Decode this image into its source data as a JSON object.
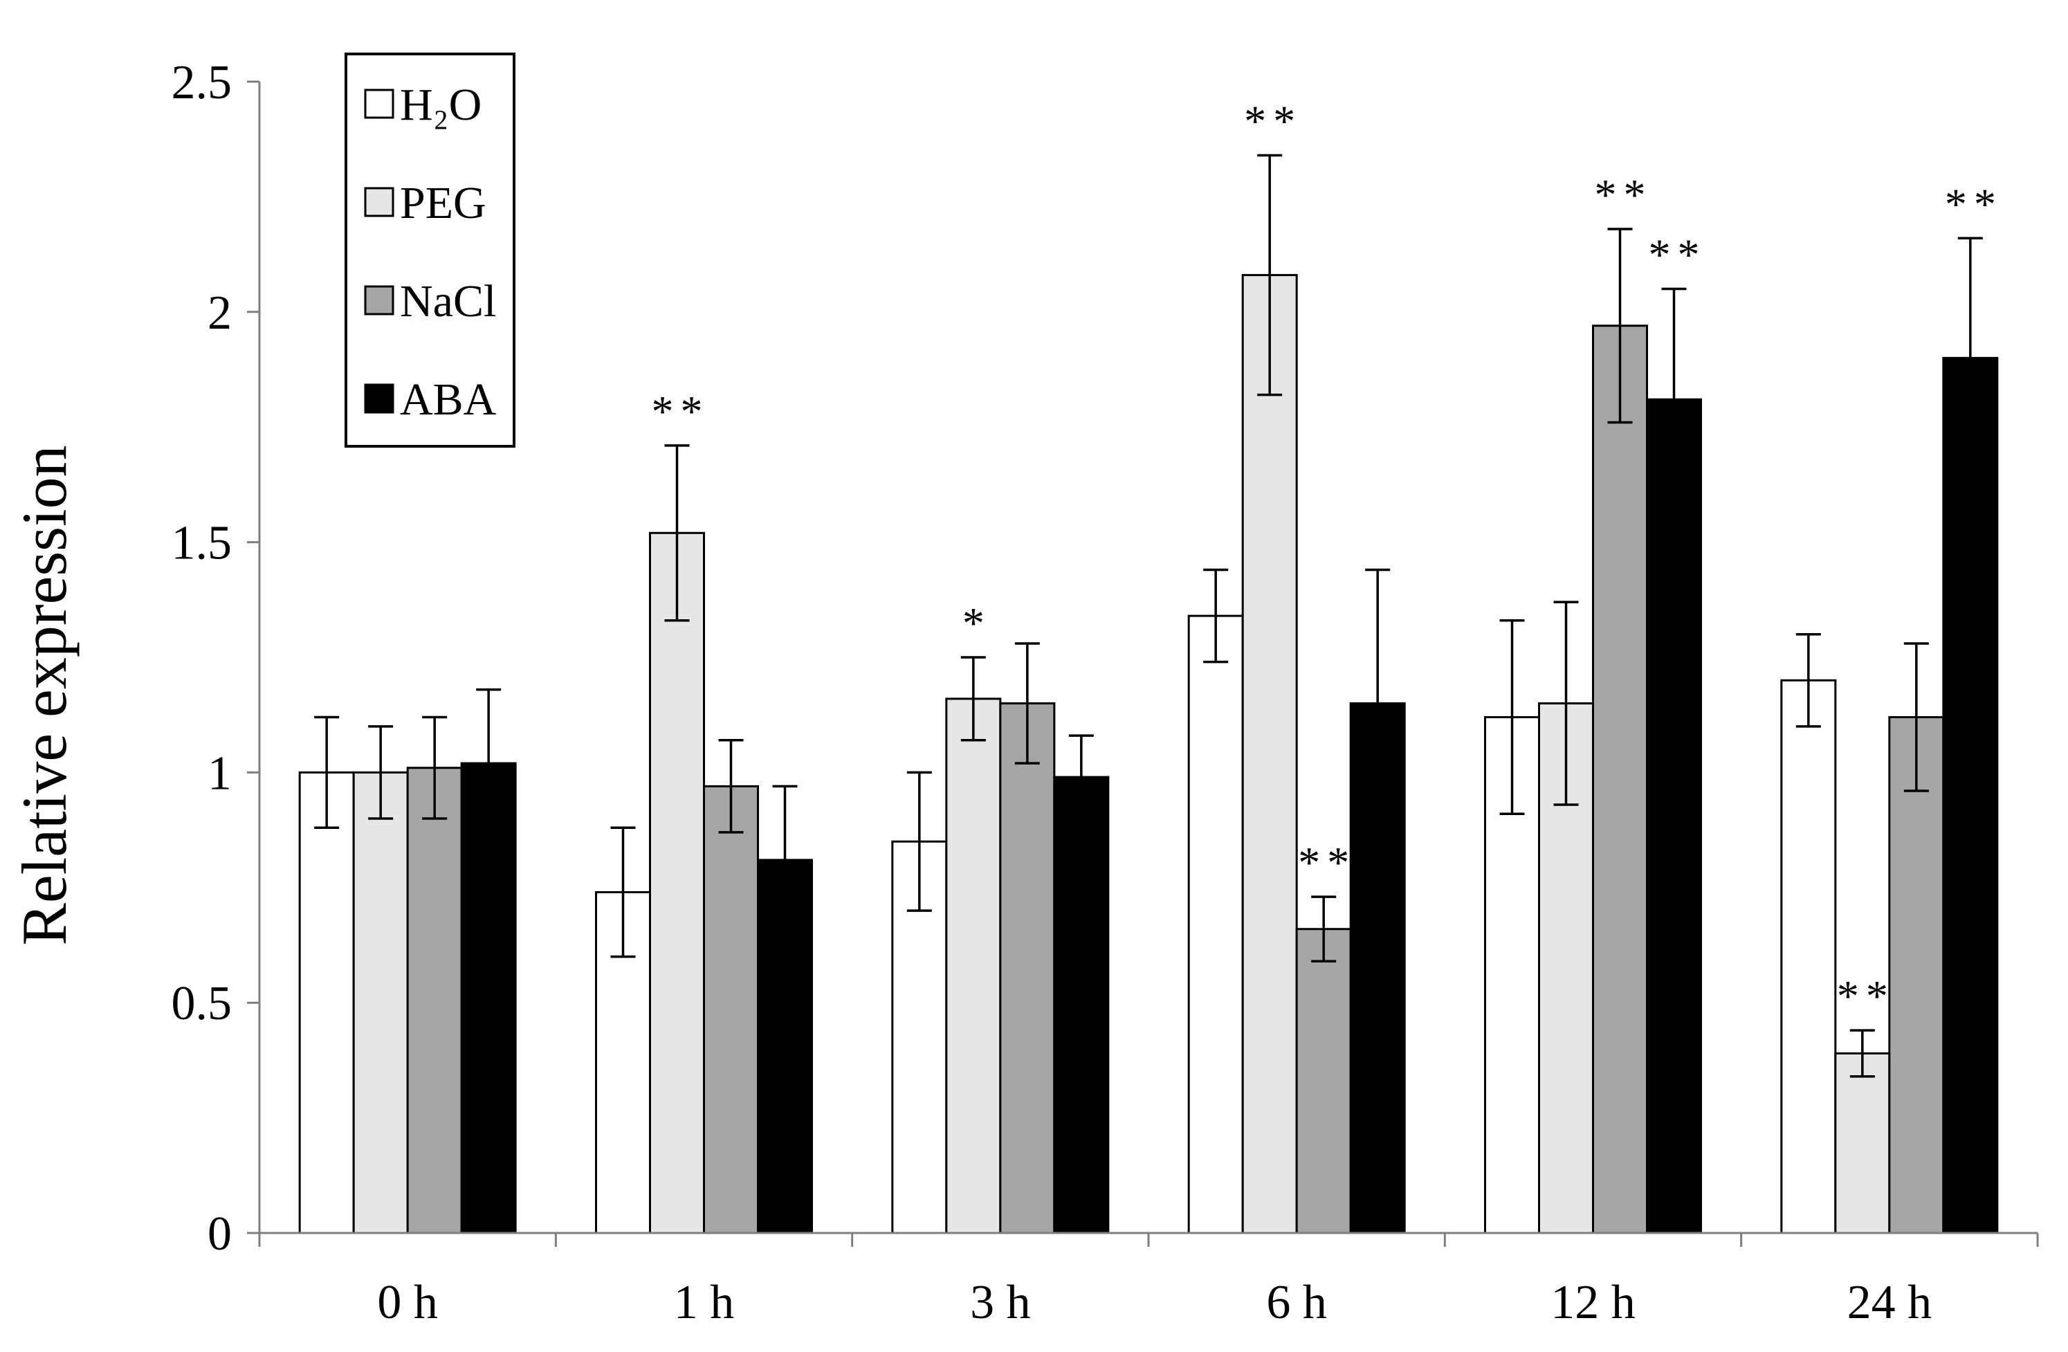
{
  "chart_data": {
    "type": "bar",
    "title": "",
    "xlabel": "",
    "ylabel": "Relative expression",
    "ylim": [
      0,
      2.5
    ],
    "yticks": [
      0,
      0.5,
      1,
      1.5,
      2,
      2.5
    ],
    "ytick_labels": [
      "0",
      "0.5",
      "1",
      "1.5",
      "2",
      "2.5"
    ],
    "categories": [
      "0 h",
      "1 h",
      "3 h",
      "6 h",
      "12 h",
      "24 h"
    ],
    "legend_position": "top-left",
    "series": [
      {
        "name": "H₂O",
        "color": "#ffffff",
        "values": [
          1.0,
          0.74,
          0.85,
          1.34,
          1.12,
          1.2
        ],
        "errors": [
          0.12,
          0.14,
          0.15,
          0.1,
          0.21,
          0.1
        ],
        "significance": [
          "",
          "",
          "",
          "",
          "",
          ""
        ]
      },
      {
        "name": "PEG",
        "color": "#e6e6e6",
        "values": [
          1.0,
          1.52,
          1.16,
          2.08,
          1.15,
          0.39
        ],
        "errors": [
          0.1,
          0.19,
          0.09,
          0.26,
          0.22,
          0.05
        ],
        "significance": [
          "",
          "**",
          "*",
          "**",
          "",
          "**"
        ]
      },
      {
        "name": "NaCl",
        "color": "#a6a6a6",
        "values": [
          1.01,
          0.97,
          1.15,
          0.66,
          1.97,
          1.12
        ],
        "errors": [
          0.11,
          0.1,
          0.13,
          0.07,
          0.21,
          0.16
        ],
        "significance": [
          "",
          "",
          "",
          "**",
          "**",
          ""
        ]
      },
      {
        "name": "ABA",
        "color": "#000000",
        "values": [
          1.02,
          0.81,
          0.99,
          1.15,
          1.81,
          1.9
        ],
        "errors": [
          0.16,
          0.16,
          0.09,
          0.29,
          0.24,
          0.26
        ],
        "significance": [
          "",
          "",
          "",
          "",
          "**",
          "**"
        ]
      }
    ]
  }
}
